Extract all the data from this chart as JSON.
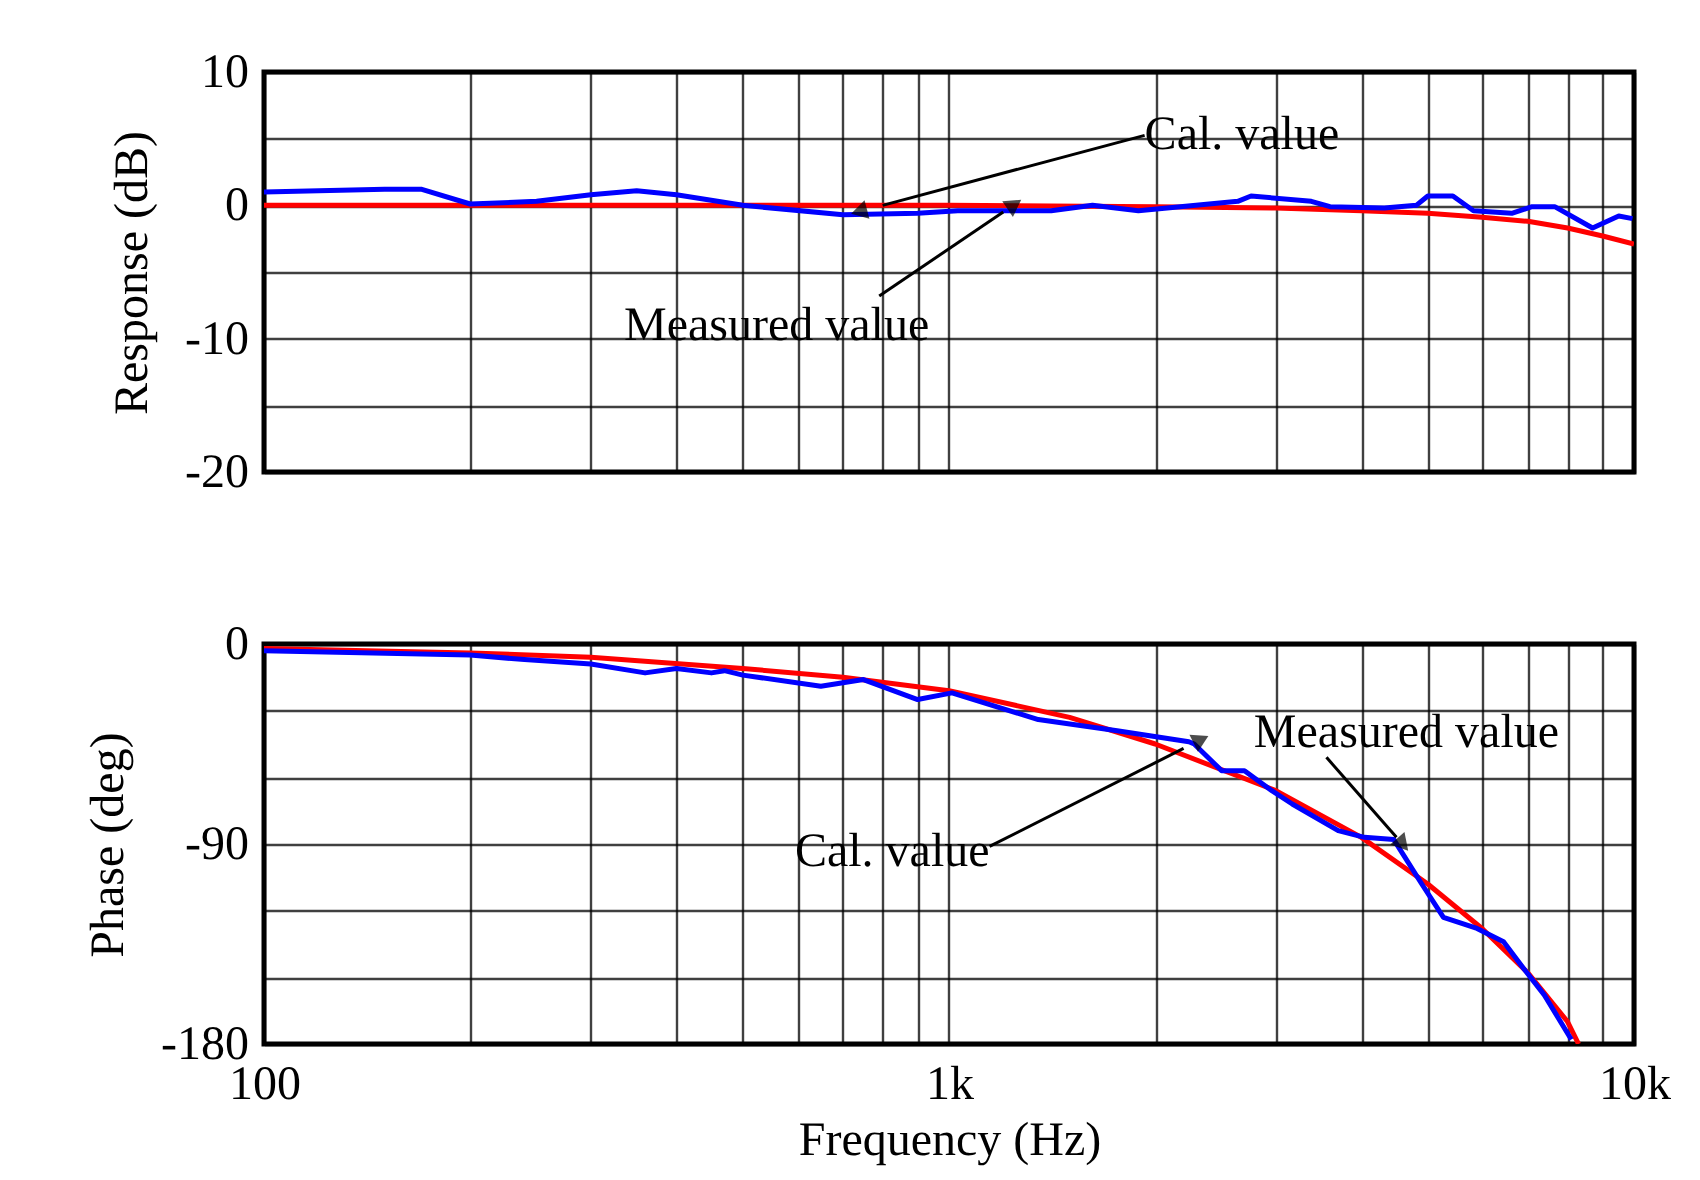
{
  "chart_data": [
    {
      "type": "line",
      "ylabel": "Response (dB)",
      "tick_labels": "y",
      "log": "x",
      "grid": true,
      "xlim": [
        100,
        10000
      ],
      "xticks": [
        {
          "value": 100,
          "label": null
        },
        {
          "value": 200,
          "label": null
        },
        {
          "value": 300,
          "label": null
        },
        {
          "value": 400,
          "label": null
        },
        {
          "value": 500,
          "label": null
        },
        {
          "value": 600,
          "label": null
        },
        {
          "value": 700,
          "label": null
        },
        {
          "value": 800,
          "label": null
        },
        {
          "value": 900,
          "label": null
        },
        {
          "value": 1000,
          "label": null
        },
        {
          "value": 2000,
          "label": null
        },
        {
          "value": 3000,
          "label": null
        },
        {
          "value": 4000,
          "label": null
        },
        {
          "value": 5000,
          "label": null
        },
        {
          "value": 6000,
          "label": null
        },
        {
          "value": 7000,
          "label": null
        },
        {
          "value": 8000,
          "label": null
        },
        {
          "value": 9000,
          "label": null
        },
        {
          "value": 10000,
          "label": null
        }
      ],
      "ylim": [
        -20,
        10
      ],
      "yticks": [
        10,
        {
          "value": 5,
          "label": null
        },
        0,
        {
          "value": -5,
          "label": null
        },
        -10,
        {
          "value": -15,
          "label": null
        },
        -20
      ],
      "series": [
        {
          "color": "#ff0000",
          "x": [
            100,
            1000,
            2000,
            3000,
            4000,
            5000,
            6000,
            7000,
            8000,
            9000,
            10000
          ],
          "values": [
            0,
            0,
            -0.1,
            -0.2,
            -0.4,
            -0.6,
            -0.9,
            -1.2,
            -1.7,
            -2.3,
            -2.9
          ]
        },
        {
          "color": "#0000ff",
          "x": [
            100,
            150,
            170,
            200,
            250,
            300,
            350,
            400,
            500,
            700,
            900,
            1030,
            1410,
            1620,
            1890,
            2640,
            2760,
            3380,
            3600,
            4320,
            4810,
            5000,
            5440,
            5830,
            6630,
            7100,
            7660,
            8700,
            9500,
            9950
          ],
          "values": [
            1.0,
            1.2,
            1.2,
            0.1,
            0.3,
            0.8,
            1.1,
            0.8,
            0,
            -0.7,
            -0.6,
            -0.4,
            -0.4,
            0,
            -0.4,
            0.3,
            0.7,
            0.3,
            -0.1,
            -0.2,
            0,
            0.7,
            0.7,
            -0.4,
            -0.6,
            -0.1,
            -0.1,
            -1.7,
            -0.8,
            -1.0
          ]
        }
      ],
      "annotations": [
        {
          "text": "Cal. value",
          "x": 800,
          "y": 0
        },
        {
          "text": "Measured value",
          "x": 1200,
          "y": -0.5
        }
      ]
    },
    {
      "type": "line",
      "xlabel": "Frequency (Hz)",
      "ylabel": "Phase (deg)",
      "log": "x",
      "grid": true,
      "xlim": [
        100,
        10000
      ],
      "xticks": [
        100,
        {
          "value": 200,
          "label": null
        },
        {
          "value": 300,
          "label": null
        },
        {
          "value": 400,
          "label": null
        },
        {
          "value": 500,
          "label": null
        },
        {
          "value": 600,
          "label": null
        },
        {
          "value": 700,
          "label": null
        },
        {
          "value": 800,
          "label": null
        },
        {
          "value": 900,
          "label": null
        },
        {
          "value": 1000,
          "label": "1k"
        },
        {
          "value": 2000,
          "label": null
        },
        {
          "value": 3000,
          "label": null
        },
        {
          "value": 4000,
          "label": null
        },
        {
          "value": 5000,
          "label": null
        },
        {
          "value": 6000,
          "label": null
        },
        {
          "value": 7000,
          "label": null
        },
        {
          "value": 8000,
          "label": null
        },
        {
          "value": 9000,
          "label": null
        },
        {
          "value": 10000,
          "label": "10k"
        }
      ],
      "ylim": [
        -180,
        0
      ],
      "yticks": [
        0,
        {
          "value": -30,
          "label": null
        },
        {
          "value": -60,
          "label": null
        },
        -90,
        {
          "value": -120,
          "label": null
        },
        {
          "value": -150,
          "label": null
        },
        -180
      ],
      "series": [
        {
          "color": "#ff0000",
          "x": [
            100,
            200,
            300,
            500,
            700,
            1000,
            1500,
            2000,
            3000,
            4000,
            5000,
            6000,
            7000,
            8000,
            8300
          ],
          "values": [
            -2,
            -4,
            -6,
            -11,
            -15,
            -21,
            -33,
            -45,
            -66,
            -87,
            -108,
            -128,
            -148,
            -170,
            -180
          ]
        },
        {
          "color": "#0000ff",
          "x": [
            100,
            200,
            240,
            300,
            360,
            400,
            450,
            470,
            500,
            650,
            750,
            900,
            1010,
            1350,
            1760,
            2240,
            2280,
            2500,
            2700,
            2960,
            3170,
            3700,
            4040,
            4460,
            4900,
            5270,
            5900,
            6450,
            6900,
            7400,
            8100
          ],
          "values": [
            -3,
            -5,
            -7,
            -9,
            -13,
            -11,
            -13,
            -12,
            -14,
            -19,
            -16,
            -25,
            -22,
            -34,
            -39,
            -44,
            -45,
            -57,
            -57,
            -66,
            -72,
            -84,
            -87,
            -88,
            -108,
            -123,
            -128,
            -134,
            -146,
            -158,
            -178
          ]
        }
      ],
      "annotations": [
        {
          "text": "Cal. value",
          "x": 2200,
          "y": -47
        },
        {
          "text": "Measured value",
          "x": 4500,
          "y": -87
        }
      ]
    }
  ]
}
